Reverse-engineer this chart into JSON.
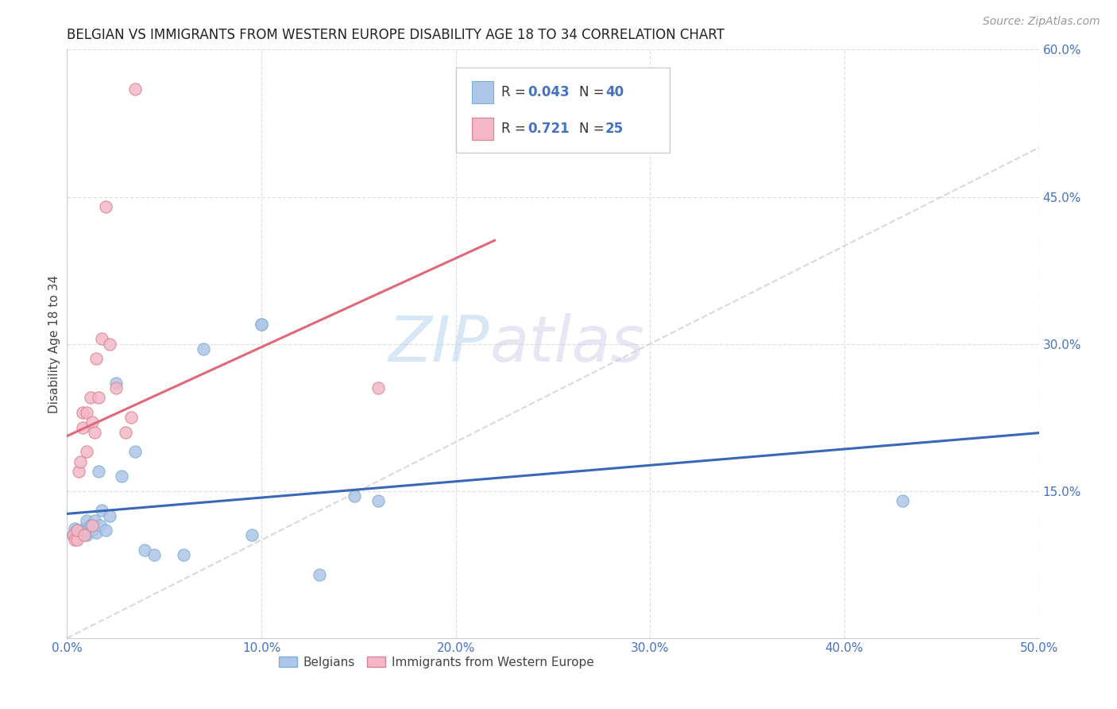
{
  "title": "BELGIAN VS IMMIGRANTS FROM WESTERN EUROPE DISABILITY AGE 18 TO 34 CORRELATION CHART",
  "source": "Source: ZipAtlas.com",
  "ylabel": "Disability Age 18 to 34",
  "xlim": [
    0.0,
    0.5
  ],
  "ylim": [
    0.0,
    0.6
  ],
  "xticks": [
    0.0,
    0.1,
    0.2,
    0.3,
    0.4,
    0.5
  ],
  "yticks_right": [
    0.15,
    0.3,
    0.45,
    0.6
  ],
  "ytick_labels_right": [
    "15.0%",
    "30.0%",
    "45.0%",
    "60.0%"
  ],
  "xtick_labels": [
    "0.0%",
    "10.0%",
    "20.0%",
    "30.0%",
    "40.0%",
    "50.0%"
  ],
  "belgian_color": "#aec6e8",
  "immigrant_color": "#f4b8c8",
  "belgian_line_color": "#3a68b8",
  "immigrant_line_color": "#e06878",
  "diagonal_color": "#d0d0d0",
  "belgian_x": [
    0.003,
    0.004,
    0.004,
    0.005,
    0.005,
    0.006,
    0.006,
    0.007,
    0.007,
    0.008,
    0.008,
    0.009,
    0.009,
    0.01,
    0.01,
    0.01,
    0.011,
    0.012,
    0.013,
    0.014,
    0.015,
    0.016,
    0.017,
    0.018,
    0.02,
    0.022,
    0.025,
    0.028,
    0.035,
    0.04,
    0.045,
    0.06,
    0.07,
    0.1,
    0.1,
    0.13,
    0.148,
    0.16,
    0.43,
    0.095
  ],
  "belgian_y": [
    0.105,
    0.108,
    0.112,
    0.105,
    0.11,
    0.108,
    0.105,
    0.108,
    0.105,
    0.11,
    0.105,
    0.11,
    0.112,
    0.105,
    0.11,
    0.12,
    0.11,
    0.115,
    0.11,
    0.12,
    0.108,
    0.17,
    0.115,
    0.13,
    0.11,
    0.125,
    0.26,
    0.165,
    0.19,
    0.09,
    0.085,
    0.085,
    0.295,
    0.32,
    0.32,
    0.065,
    0.145,
    0.14,
    0.14,
    0.105
  ],
  "immigrant_x": [
    0.003,
    0.004,
    0.005,
    0.005,
    0.006,
    0.007,
    0.008,
    0.008,
    0.009,
    0.01,
    0.01,
    0.012,
    0.013,
    0.013,
    0.014,
    0.015,
    0.016,
    0.018,
    0.02,
    0.022,
    0.025,
    0.03,
    0.033,
    0.035,
    0.16
  ],
  "immigrant_y": [
    0.105,
    0.1,
    0.1,
    0.11,
    0.17,
    0.18,
    0.215,
    0.23,
    0.105,
    0.19,
    0.23,
    0.245,
    0.115,
    0.22,
    0.21,
    0.285,
    0.245,
    0.305,
    0.44,
    0.3,
    0.255,
    0.21,
    0.225,
    0.56,
    0.255
  ],
  "watermark_zip": "ZIP",
  "watermark_atlas": "atlas",
  "background_color": "#ffffff",
  "grid_color": "#e0e0e0",
  "title_fontsize": 12,
  "legend_R1": "0.043",
  "legend_N1": "40",
  "legend_R2": "0.721",
  "legend_N2": "25"
}
